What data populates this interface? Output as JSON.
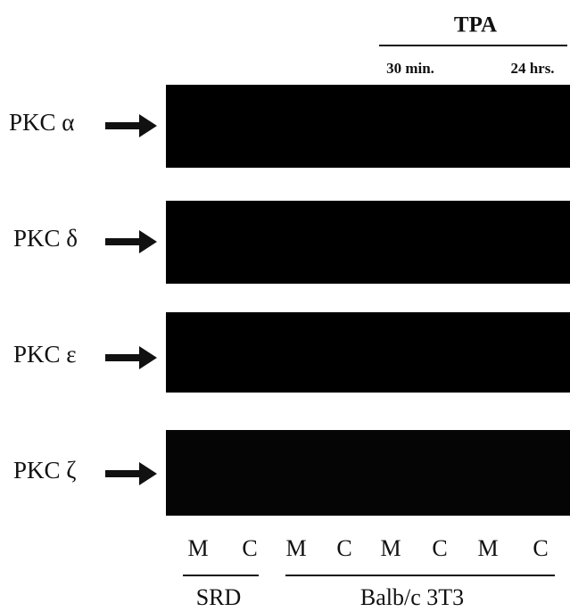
{
  "header": {
    "title": "TPA",
    "times": [
      "30 min.",
      "24 hrs."
    ]
  },
  "panels": [
    {
      "label": "PKC α"
    },
    {
      "label": "PKC δ"
    },
    {
      "label": "PKC ε"
    },
    {
      "label": "PKC ζ"
    }
  ],
  "lanes": [
    "M",
    "C",
    "M",
    "C",
    "M",
    "C",
    "M",
    "C"
  ],
  "groups": [
    "SRD",
    "Balb/c 3T3"
  ]
}
